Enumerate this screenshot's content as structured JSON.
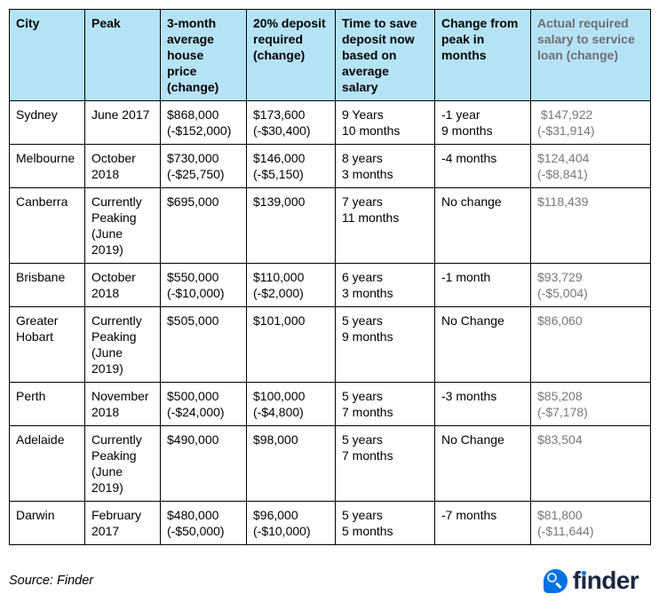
{
  "colors": {
    "header_bg": "#b5e3f6",
    "border": "#000000",
    "muted_header_text": "#6d6f72",
    "muted_cell_text": "#77787a",
    "logo_blue": "#0271e1",
    "logo_navy": "#1b2640",
    "logo_glass": "#cde3fa"
  },
  "chart_data": {
    "type": "table",
    "columns": [
      "City",
      "Peak",
      "3-month\naverage\nhouse\nprice\n(change)",
      "20% deposit\nrequired\n(change)",
      "Time to save\ndeposit now\nbased on\naverage\nsalary",
      "Change from\npeak in\nmonths",
      "Actual required\nsalary to service\nloan (change)"
    ],
    "rows": [
      [
        "Sydney",
        "June 2017",
        "$868,000\n(-$152,000)",
        "$173,600\n(-$30,400)",
        "9 Years\n10 months",
        "-1 year\n9 months",
        " $147,922\n(-$31,914)"
      ],
      [
        "Melbourne",
        "October\n2018",
        "$730,000\n(-$25,750)",
        "$146,000\n(-$5,150)",
        "8 years\n3 months",
        "-4 months",
        "$124,404\n(-$8,841)"
      ],
      [
        "Canberra",
        "Currently\nPeaking\n(June\n2019)",
        "$695,000",
        "$139,000",
        "7 years\n11 months",
        "No change",
        "$118,439"
      ],
      [
        "Brisbane",
        "October\n2018",
        "$550,000\n(-$10,000)",
        "$110,000\n(-$2,000)",
        "6 years\n3 months",
        "-1 month",
        "$93,729\n(-$5,004)"
      ],
      [
        "Greater\nHobart",
        "Currently\nPeaking\n(June\n2019)",
        "$505,000",
        "$101,000",
        "5 years\n9 months",
        "No Change",
        "$86,060"
      ],
      [
        "Perth",
        "November\n2018",
        "$500,000\n(-$24,000)",
        "$100,000\n(-$4,800)",
        "5 years\n7 months",
        "-3 months",
        "$85,208\n(-$7,178)"
      ],
      [
        "Adelaide",
        "Currently\nPeaking\n(June\n2019)",
        "$490,000",
        "$98,000",
        "5 years\n7 months",
        "No Change",
        "$83,504"
      ],
      [
        "Darwin",
        "February\n2017",
        "$480,000\n(-$50,000)",
        "$96,000\n(-$10,000)",
        "5 years\n5 months",
        "-7 months",
        "$81,800\n(-$11,644)"
      ]
    ]
  },
  "footer": {
    "source": "Source: Finder",
    "logo": {
      "part_f": "f",
      "part_i_dotless": "ı",
      "part_rest": "nder"
    }
  }
}
